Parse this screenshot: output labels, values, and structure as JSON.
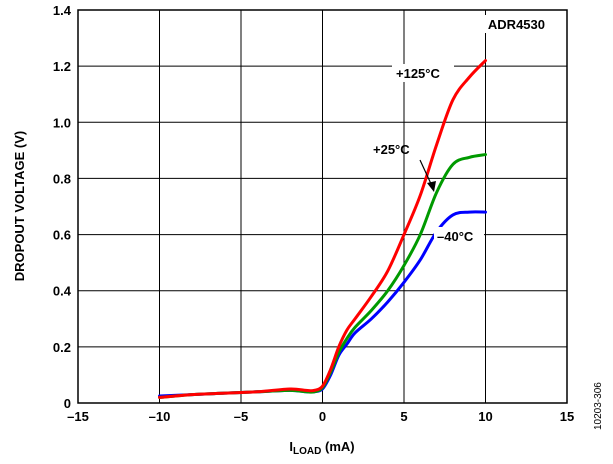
{
  "figure_id": "10203-306",
  "chart_data": {
    "type": "line",
    "title": "",
    "xlabel_main": "I",
    "xlabel_sub": "LOAD",
    "xlabel_unit": " (mA)",
    "ylabel": "DROPOUT VOLTAGE (V)",
    "xlim": [
      -15,
      15
    ],
    "ylim": [
      0,
      1.4
    ],
    "xticks": [
      -15,
      -10,
      -5,
      0,
      5,
      10,
      15
    ],
    "xtick_labels": [
      "–15",
      "–10",
      "–5",
      "0",
      "5",
      "10",
      "15"
    ],
    "yticks": [
      0,
      0.2,
      0.4,
      0.6,
      0.8,
      1.0,
      1.2,
      1.4
    ],
    "ytick_labels": [
      "0",
      "0.2",
      "0.4",
      "0.6",
      "0.8",
      "1.0",
      "1.2",
      "1.4"
    ],
    "grid": true,
    "legend": "none",
    "annotations": {
      "device": "ADR4530",
      "t125": "+125°C",
      "t25": "+25°C",
      "tm40": "–40°C"
    },
    "series": [
      {
        "name": "+125°C",
        "color": "#ff0000",
        "x": [
          -10,
          -8,
          -6,
          -4,
          -2,
          -1,
          -0.5,
          0,
          0.5,
          1,
          1.5,
          2,
          3,
          4,
          5,
          6,
          7,
          8,
          9,
          10
        ],
        "y": [
          0.02,
          0.03,
          0.035,
          0.04,
          0.05,
          0.045,
          0.045,
          0.06,
          0.12,
          0.2,
          0.26,
          0.3,
          0.38,
          0.47,
          0.6,
          0.74,
          0.92,
          1.08,
          1.16,
          1.22
        ]
      },
      {
        "name": "+25°C",
        "color": "#009a00",
        "x": [
          -10,
          -8,
          -6,
          -4,
          -2,
          -1,
          -0.5,
          0,
          0.5,
          1,
          1.5,
          2,
          3,
          4,
          5,
          6,
          7,
          8,
          9,
          10
        ],
        "y": [
          0.02,
          0.03,
          0.035,
          0.04,
          0.045,
          0.04,
          0.04,
          0.055,
          0.11,
          0.18,
          0.23,
          0.27,
          0.33,
          0.4,
          0.49,
          0.6,
          0.75,
          0.85,
          0.875,
          0.885
        ]
      },
      {
        "name": "–40°C",
        "color": "#0000ff",
        "x": [
          -10,
          -8,
          -6,
          -4,
          -2,
          -1,
          -0.5,
          0,
          0.5,
          1,
          1.5,
          2,
          3,
          4,
          5,
          6,
          7,
          8,
          9,
          10
        ],
        "y": [
          0.025,
          0.03,
          0.035,
          0.04,
          0.045,
          0.04,
          0.04,
          0.05,
          0.1,
          0.17,
          0.21,
          0.25,
          0.3,
          0.36,
          0.43,
          0.51,
          0.61,
          0.67,
          0.68,
          0.68
        ]
      }
    ]
  }
}
